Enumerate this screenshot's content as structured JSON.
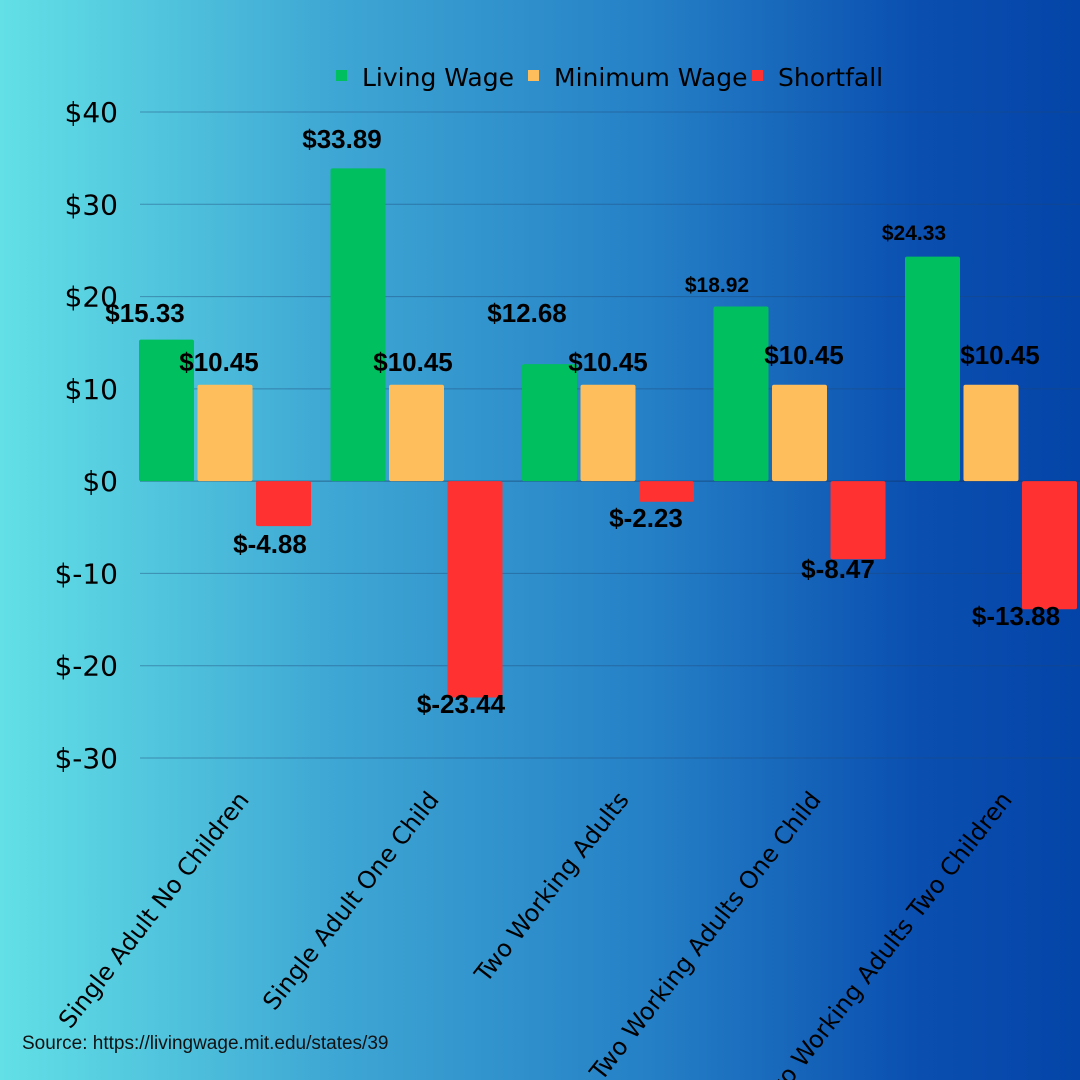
{
  "chart_data": {
    "type": "bar",
    "categories": [
      "Single Adult No Children",
      "Single Adult One Child",
      "Two Working Adults",
      "Two Working Adults One Child",
      "Two Working Adults Two Children"
    ],
    "series": [
      {
        "name": "Living Wage",
        "color": "#00bf5e",
        "values": [
          15.33,
          33.89,
          12.68,
          18.92,
          24.33
        ],
        "labels": [
          "$15.33",
          "$33.89",
          "$12.68",
          "$18.92",
          "$24.33"
        ]
      },
      {
        "name": "Minimum Wage",
        "color": "#ffbe5c",
        "values": [
          10.45,
          10.45,
          10.45,
          10.45,
          10.45
        ],
        "labels": [
          "$10.45",
          "$10.45",
          "$10.45",
          "$10.45",
          "$10.45"
        ]
      },
      {
        "name": "Shortfall",
        "color": "#ff3131",
        "values": [
          -4.88,
          -23.44,
          -2.23,
          -8.47,
          -13.88
        ],
        "labels": [
          "$-4.88",
          "$-23.44",
          "$-2.23",
          "$-8.47",
          "$-13.88"
        ]
      }
    ],
    "ylim": [
      -30,
      40
    ],
    "yticks": [
      40,
      30,
      20,
      10,
      0,
      -10,
      -20,
      -30
    ],
    "ytick_labels": [
      "$40",
      "$30",
      "$20",
      "$10",
      "$0",
      "$-10",
      "$-20",
      "$-30"
    ],
    "grid": true,
    "legend_position": "top",
    "title": "",
    "xlabel": "",
    "ylabel": ""
  },
  "source": "Source: https://livingwage.mit.edu/states/39"
}
